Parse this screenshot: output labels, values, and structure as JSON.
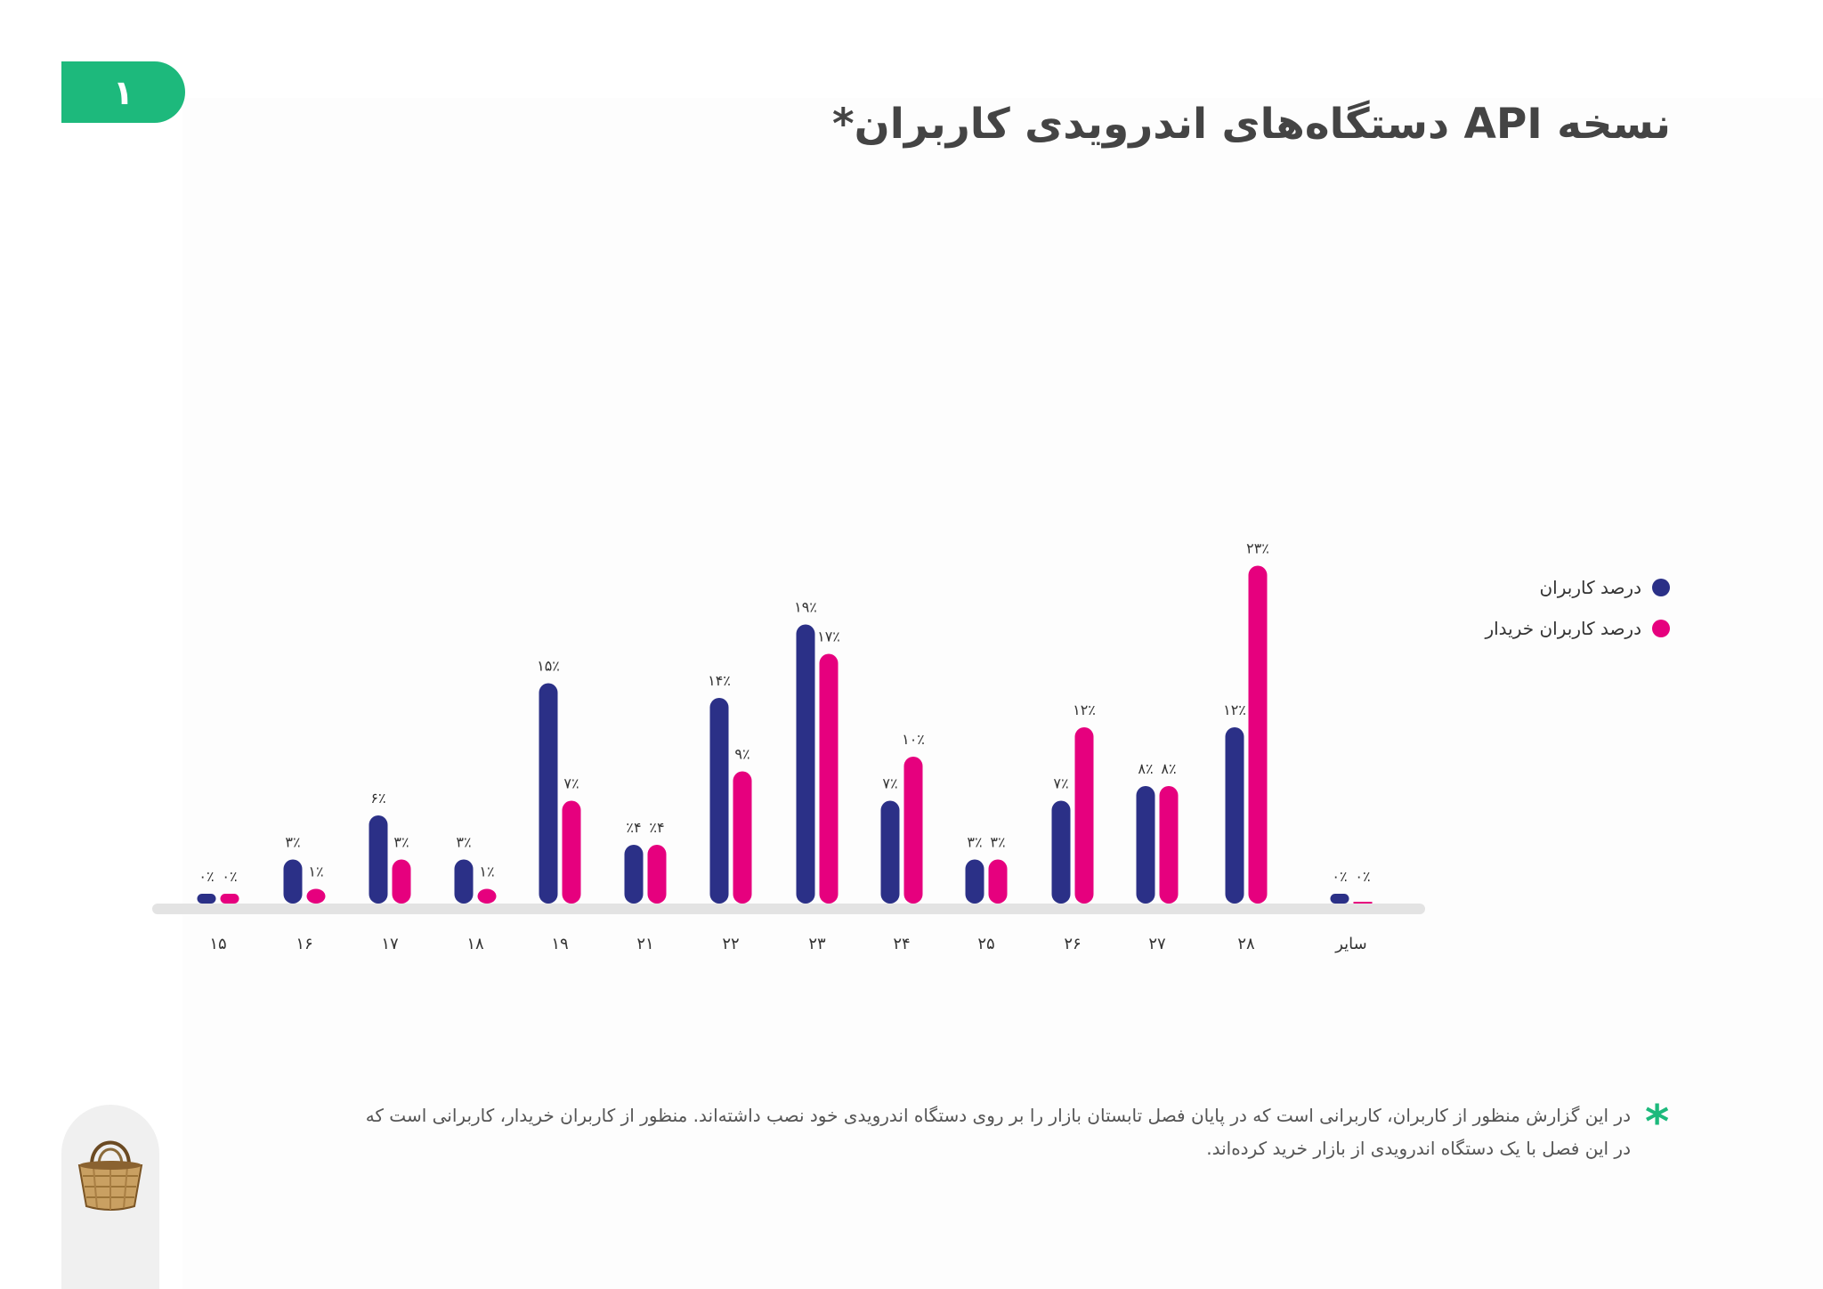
{
  "page_number": "۱",
  "title": "نسخه API دستگاه‌های اندرویدی کاربران*",
  "colors": {
    "accent": "#1db97c",
    "users": "#2b3087",
    "buyers": "#e6007e",
    "baseline": "#e3e3e3"
  },
  "legend": [
    {
      "label": "درصد کاربران",
      "color": "#2b3087"
    },
    {
      "label": "درصد کاربران خریدار",
      "color": "#e6007e"
    }
  ],
  "chart_data": {
    "type": "bar",
    "title": "نسخه API دستگاه‌های اندرویدی کاربران*",
    "xlabel": "",
    "ylabel": "",
    "categories": [
      "۱۵",
      "۱۶",
      "۱۷",
      "۱۸",
      "۱۹",
      "۲۱",
      "۲۲",
      "۲۳",
      "۲۴",
      "۲۵",
      "۲۶",
      "۲۷",
      "۲۸",
      "سایر"
    ],
    "series": [
      {
        "name": "درصد کاربران",
        "color": "#2b3087",
        "values": [
          0,
          3,
          6,
          3,
          15,
          4,
          14,
          19,
          7,
          3,
          7,
          8,
          12,
          0
        ],
        "labels": [
          "۰٪",
          "۳٪",
          "۶٪",
          "۳٪",
          "۱۵٪",
          "٪۴",
          "۱۴٪",
          "۱۹٪",
          "۷٪",
          "۳٪",
          "۷٪",
          "۸٪",
          "۱۲٪",
          "۰٪"
        ]
      },
      {
        "name": "درصد کاربران خریدار",
        "color": "#e6007e",
        "values": [
          0,
          1,
          3,
          1,
          7,
          4,
          9,
          17,
          10,
          3,
          12,
          8,
          23,
          0
        ],
        "labels": [
          "۰٪",
          "۱٪",
          "۳٪",
          "۱٪",
          "۷٪",
          "٪۴",
          "۹٪",
          "۱۷٪",
          "۱۰٪",
          "۳٪",
          "۱۲٪",
          "۸٪",
          "۲۳٪",
          "۰٪"
        ]
      }
    ],
    "legend_position": "right",
    "grid": false
  },
  "footnote": {
    "marker": "*",
    "line1": "در این گزارش منظور از کاربران، کاربرانی است که در پایان فصل تابستان بازار را بر روی دستگاه اندرویدی خود نصب داشته‌اند. منظور از کاربران خریدار، کاربرانی است که",
    "line2": "در این فصل با یک دستگاه اندرویدی از بازار خرید کرده‌اند."
  },
  "icons": {
    "side_tab": "basket-icon"
  }
}
